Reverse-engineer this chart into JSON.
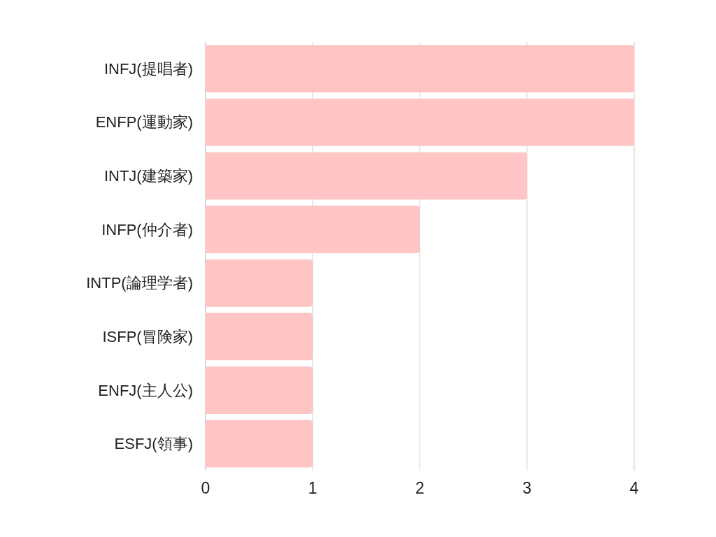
{
  "chart_data": {
    "type": "bar",
    "orientation": "horizontal",
    "categories": [
      "INFJ(提唱者)",
      "ENFP(運動家)",
      "INTJ(建築家)",
      "INFP(仲介者)",
      "INTP(論理学者)",
      "ISFP(冒険家)",
      "ENFJ(主人公)",
      "ESFJ(領事)"
    ],
    "values": [
      4,
      4,
      3,
      2,
      1,
      1,
      1,
      1
    ],
    "color": "#fec5c4",
    "xlim": [
      0,
      4
    ],
    "xticks": [
      0,
      1,
      2,
      3,
      4
    ],
    "grid": "x"
  }
}
